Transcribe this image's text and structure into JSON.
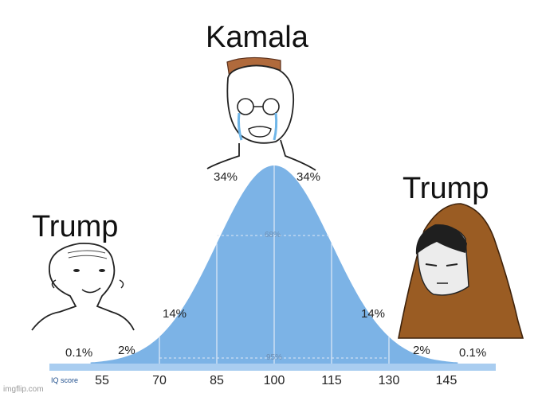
{
  "captions": {
    "top": "Kamala",
    "left": "Trump",
    "right": "Trump"
  },
  "chart_data": {
    "type": "area",
    "xlabel": "IQ score",
    "ticks": [
      "55",
      "70",
      "85",
      "100",
      "115",
      "130",
      "145"
    ],
    "x": [
      55,
      70,
      85,
      100,
      115,
      130,
      145
    ],
    "band_labels": {
      "outer_left": "0.1%",
      "tail_left": "2%",
      "mid_left": "14%",
      "center_left": "34%",
      "center_right": "34%",
      "mid_right": "14%",
      "tail_right": "2%",
      "outer_right": "0.1%"
    },
    "inner_labels": {
      "sd1": "68%",
      "sd2": "95%"
    },
    "colors": {
      "curve": "#7cb3e6",
      "bar": "#a9cdf0",
      "lines": "#dfeaf6"
    }
  },
  "watermark": "imgflip.com"
}
